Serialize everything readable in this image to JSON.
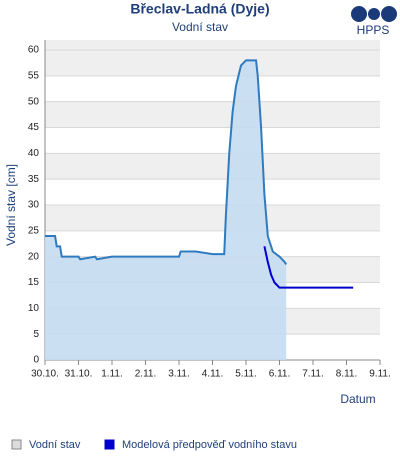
{
  "chart_data": {
    "type": "area",
    "title": "Břeclav-Ladná (Dyje)",
    "subtitle": "Vodní stav",
    "logo": "HPPS",
    "y_label": "Vodní stav [cm]",
    "x_label": "Datum",
    "xlim": [
      0,
      10
    ],
    "ylim": [
      0,
      60
    ],
    "xticks": [
      {
        "value": 0,
        "label": "30.10."
      },
      {
        "value": 1,
        "label": "31.10."
      },
      {
        "value": 2,
        "label": "1.11."
      },
      {
        "value": 3,
        "label": "2.11."
      },
      {
        "value": 4,
        "label": "3.11."
      },
      {
        "value": 5,
        "label": "4.11."
      },
      {
        "value": 6,
        "label": "5.11."
      },
      {
        "value": 7,
        "label": "6.11."
      },
      {
        "value": 8,
        "label": "7.11."
      },
      {
        "value": 9,
        "label": "8.11."
      },
      {
        "value": 10,
        "label": "9.11."
      }
    ],
    "yticks": [
      0,
      5,
      10,
      15,
      20,
      25,
      30,
      35,
      40,
      45,
      50,
      55,
      60
    ],
    "grid": true,
    "series": [
      {
        "name": "Vodní stav",
        "color": "#2f7bbf",
        "fill": "#c5dbf1",
        "x": [
          0,
          0.3,
          0.35,
          0.45,
          0.5,
          1.0,
          1.05,
          1.5,
          1.55,
          2.0,
          2.5,
          3.0,
          4.0,
          4.05,
          4.5,
          5.0,
          5.35,
          5.4,
          5.5,
          5.6,
          5.7,
          5.85,
          6.0,
          6.2,
          6.3,
          6.35,
          6.45,
          6.55,
          6.65,
          6.8,
          7.0,
          7.15,
          7.2
        ],
        "values": [
          24,
          24,
          22,
          22,
          20,
          20,
          19.5,
          20,
          19.5,
          20,
          20,
          20,
          20,
          21,
          21,
          20.5,
          20.5,
          28,
          40,
          48,
          53,
          57,
          58,
          58,
          58,
          55,
          45,
          32,
          24,
          21,
          20,
          19,
          18.5
        ]
      },
      {
        "name": "Modelová předpověď vodního stavu",
        "color": "#0000cc",
        "x": [
          6.55,
          6.65,
          6.75,
          6.85,
          7.0,
          9.2
        ],
        "values": [
          22,
          19,
          16.5,
          15,
          14,
          14
        ]
      }
    ]
  }
}
